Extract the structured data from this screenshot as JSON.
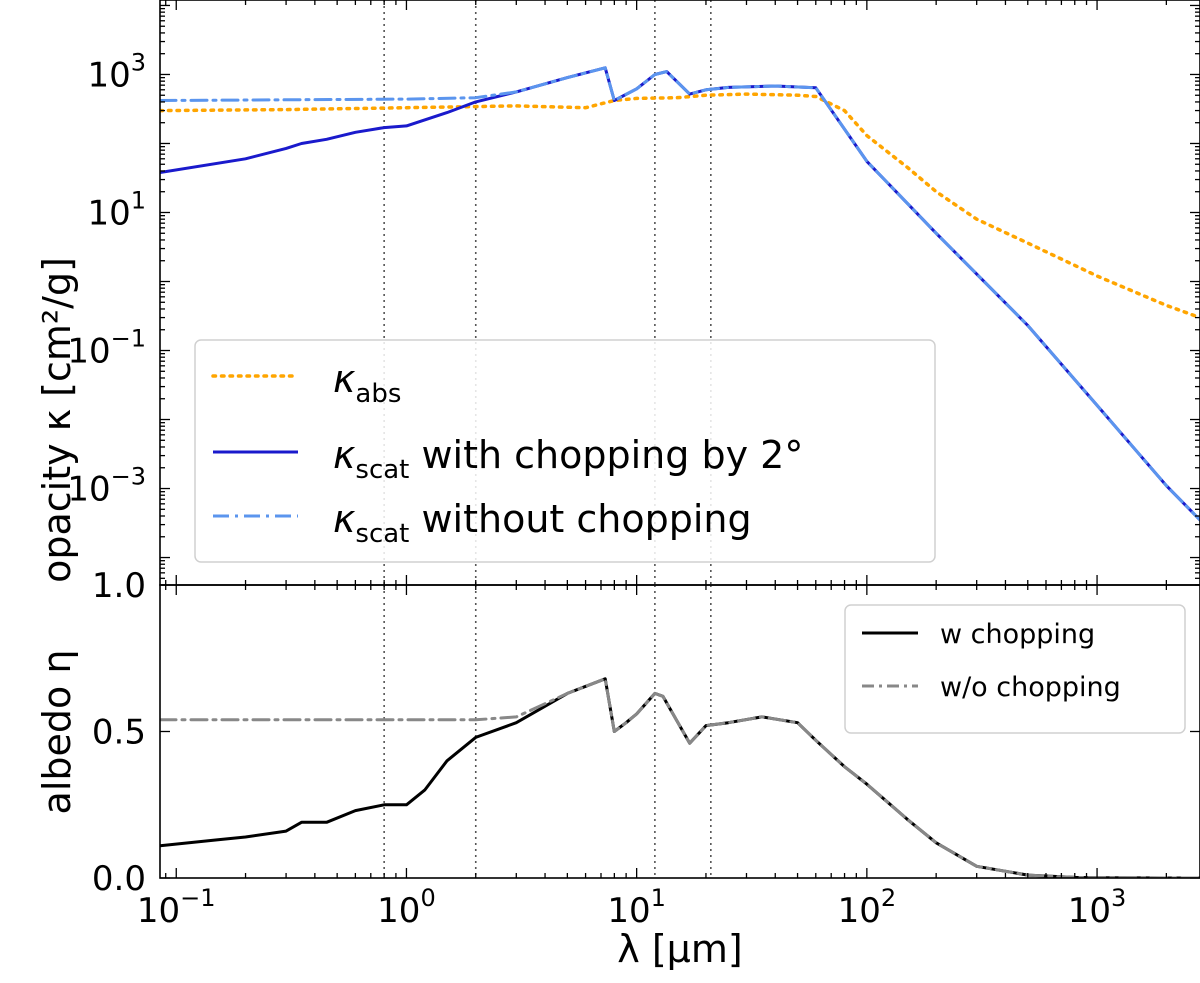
{
  "chart_data": [
    {
      "type": "line",
      "panel": "top",
      "xscale": "log",
      "yscale": "log",
      "xlim": [
        0.085,
        2800
      ],
      "ylim": [
        4e-05,
        12000
      ],
      "ylabel": "opacity κ [cm²/g]",
      "yticks": [
        {
          "value": 1000,
          "base": "10",
          "exp": "3"
        },
        {
          "value": 10,
          "base": "10",
          "exp": "1"
        },
        {
          "value": 0.1,
          "base": "10",
          "exp": "−1"
        },
        {
          "value": 0.001,
          "base": "10",
          "exp": "−3"
        }
      ],
      "bottom_tick_label": "1.0",
      "vlines": [
        0.8,
        2,
        12,
        21
      ],
      "legend": {
        "position": "lower-left",
        "entries": [
          {
            "symbol": "κ",
            "sub": "abs",
            "text": ""
          },
          {
            "symbol": "κ",
            "sub": "scat",
            "text": " with chopping by 2°"
          },
          {
            "symbol": "κ",
            "sub": "scat",
            "text": " without chopping"
          }
        ]
      },
      "series": [
        {
          "name": "κabs",
          "color": "#ffa500",
          "style": "dotted",
          "x": [
            0.085,
            0.3,
            1,
            3,
            6,
            8,
            10,
            15,
            20,
            30,
            50,
            60,
            80,
            100,
            150,
            200,
            300,
            500,
            1000,
            2000,
            2800
          ],
          "y": [
            300,
            310,
            330,
            350,
            330,
            420,
            450,
            460,
            500,
            520,
            500,
            480,
            300,
            130,
            45,
            20,
            8,
            3.6,
            1.2,
            0.45,
            0.3
          ]
        },
        {
          "name": "κscat with chopping by 2°",
          "color": "#1a1acc",
          "style": "solid",
          "x": [
            0.085,
            0.2,
            0.3,
            0.35,
            0.45,
            0.6,
            0.8,
            1,
            1.5,
            2,
            3,
            5,
            7.3,
            8,
            10,
            12,
            13.5,
            17,
            20,
            25,
            40,
            60,
            100,
            200,
            500,
            1000,
            2000,
            2800
          ],
          "y": [
            38,
            60,
            85,
            100,
            115,
            145,
            170,
            180,
            280,
            400,
            560,
            900,
            1250,
            420,
            620,
            1000,
            1100,
            520,
            600,
            650,
            680,
            640,
            55,
            5,
            0.23,
            0.016,
            0.0011,
            0.00035
          ]
        },
        {
          "name": "κscat without chopping",
          "color": "#5b95ee",
          "style": "dashdot",
          "x": [
            0.085,
            0.3,
            1,
            2,
            3,
            5,
            7.3,
            8,
            10,
            12,
            13.5,
            17,
            20,
            25,
            40,
            60,
            100,
            200,
            500,
            1000,
            2000,
            2800
          ],
          "y": [
            420,
            430,
            440,
            460,
            560,
            900,
            1250,
            420,
            620,
            1000,
            1100,
            520,
            600,
            650,
            680,
            640,
            55,
            5,
            0.23,
            0.016,
            0.0011,
            0.00035
          ]
        }
      ]
    },
    {
      "type": "line",
      "panel": "bottom",
      "xscale": "log",
      "yscale": "linear",
      "xlim": [
        0.085,
        2800
      ],
      "ylim": [
        0,
        1
      ],
      "xlabel": "λ [μm]",
      "ylabel": "albedo η",
      "yticks": [
        "0.0",
        "0.5"
      ],
      "xticks": [
        {
          "value": 0.1,
          "base": "10",
          "exp": "−1"
        },
        {
          "value": 1,
          "base": "10",
          "exp": "0"
        },
        {
          "value": 10,
          "base": "10",
          "exp": "1"
        },
        {
          "value": 100,
          "base": "10",
          "exp": "2"
        },
        {
          "value": 1000,
          "base": "10",
          "exp": "3"
        }
      ],
      "vlines": [
        0.8,
        2,
        12,
        21
      ],
      "legend": {
        "position": "top-right",
        "entries": [
          "w chopping",
          "w/o chopping"
        ]
      },
      "series": [
        {
          "name": "w chopping",
          "color": "#000000",
          "style": "solid",
          "x": [
            0.085,
            0.15,
            0.2,
            0.3,
            0.35,
            0.45,
            0.6,
            0.8,
            1,
            1.2,
            1.5,
            2,
            3,
            5,
            7.3,
            8,
            9,
            10,
            12,
            13,
            17,
            20,
            25,
            35,
            50,
            60,
            80,
            100,
            150,
            200,
            300,
            500,
            800,
            1000,
            2000,
            2800
          ],
          "y": [
            0.11,
            0.13,
            0.14,
            0.16,
            0.19,
            0.19,
            0.23,
            0.25,
            0.25,
            0.3,
            0.4,
            0.48,
            0.53,
            0.63,
            0.68,
            0.5,
            0.53,
            0.56,
            0.63,
            0.62,
            0.46,
            0.52,
            0.53,
            0.55,
            0.53,
            0.47,
            0.38,
            0.32,
            0.2,
            0.12,
            0.04,
            0.01,
            0.002,
            0.001,
            0,
            0
          ]
        },
        {
          "name": "w/o chopping",
          "color": "#888888",
          "style": "dashdot",
          "x": [
            0.085,
            0.3,
            1,
            2,
            3,
            5,
            7.3,
            8,
            9,
            10,
            12,
            13,
            17,
            20,
            25,
            35,
            50,
            60,
            80,
            100,
            150,
            200,
            300,
            500,
            800,
            1000,
            2000,
            2800
          ],
          "y": [
            0.54,
            0.54,
            0.54,
            0.54,
            0.55,
            0.63,
            0.68,
            0.5,
            0.53,
            0.56,
            0.63,
            0.62,
            0.46,
            0.52,
            0.53,
            0.55,
            0.53,
            0.47,
            0.38,
            0.32,
            0.2,
            0.12,
            0.04,
            0.01,
            0.002,
            0.001,
            0,
            0
          ]
        }
      ]
    }
  ]
}
